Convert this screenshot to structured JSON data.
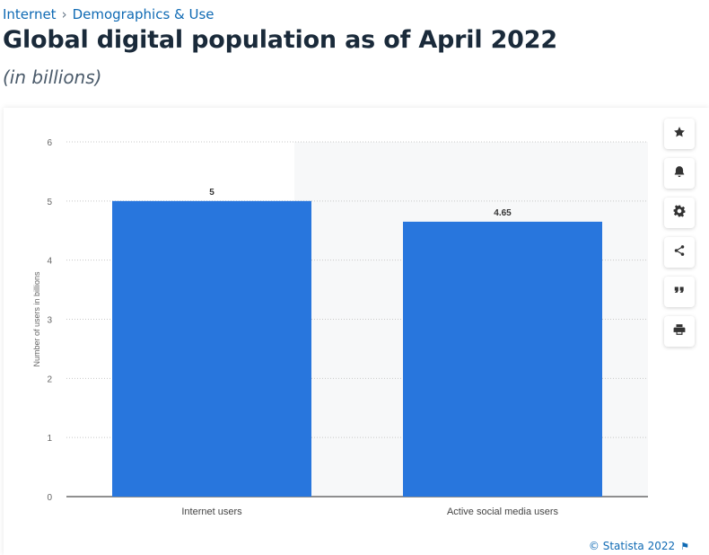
{
  "breadcrumb": {
    "items": [
      "Internet",
      "Demographics & Use"
    ],
    "separator": "›"
  },
  "title": "Global digital population as of April 2022",
  "subtitle": "(in billions)",
  "toolbar": {
    "buttons": [
      {
        "icon": "star-icon"
      },
      {
        "icon": "bell-icon"
      },
      {
        "icon": "gear-icon"
      },
      {
        "icon": "share-icon"
      },
      {
        "icon": "quote-icon"
      },
      {
        "icon": "print-icon"
      }
    ]
  },
  "copyright": "© Statista 2022",
  "colors": {
    "bar": "#2876dd",
    "link": "#0f6ab4",
    "grid": "#c8c8c8",
    "shade": "#f7f8f9"
  },
  "chart_data": {
    "type": "bar",
    "categories": [
      "Internet users",
      "Active social media users"
    ],
    "values": [
      5,
      4.65
    ],
    "value_labels": [
      "5",
      "4.65"
    ],
    "title": "",
    "xlabel": "",
    "ylabel": "Number of users in billions",
    "ylim": [
      0,
      6
    ],
    "yticks": [
      0,
      1,
      2,
      3,
      4,
      5,
      6
    ],
    "grid": true,
    "legend": "none"
  }
}
